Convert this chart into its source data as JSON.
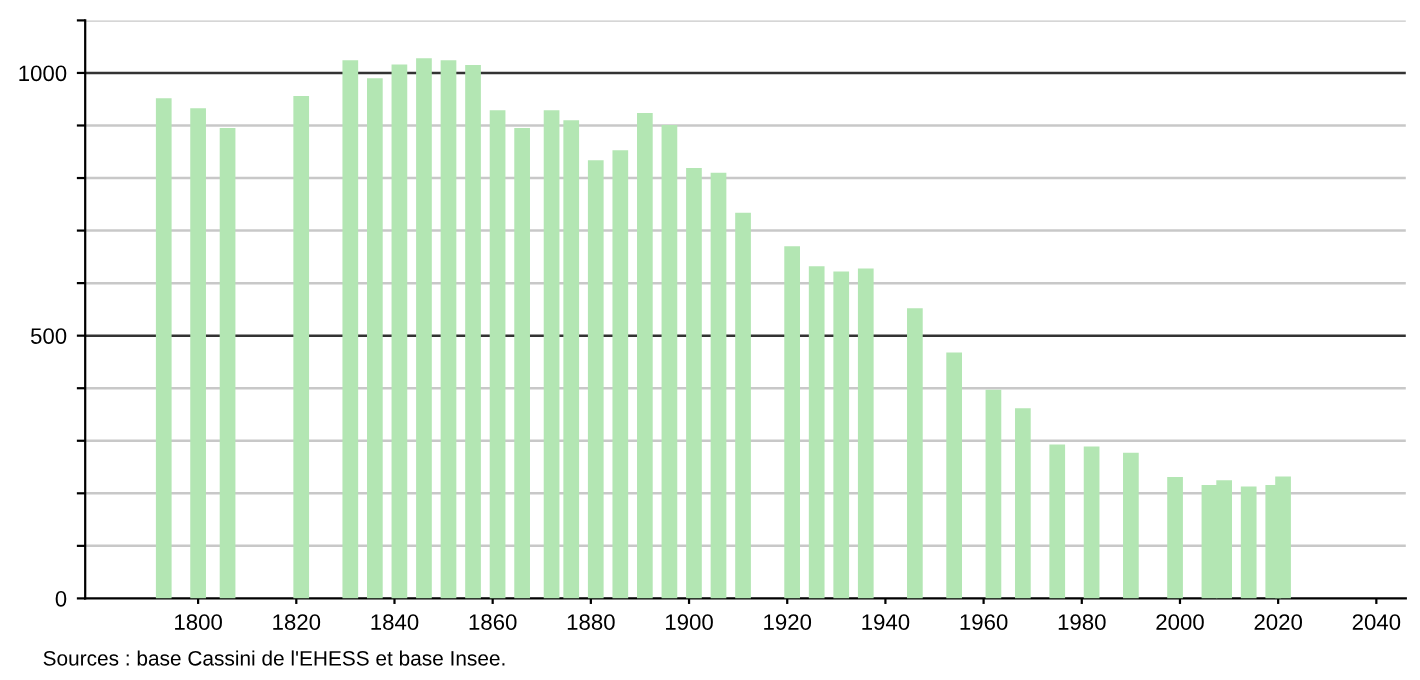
{
  "chart_data": {
    "type": "bar",
    "x": [
      1793,
      1800,
      1806,
      1821,
      1831,
      1836,
      1841,
      1846,
      1851,
      1856,
      1861,
      1866,
      1872,
      1876,
      1881,
      1886,
      1891,
      1896,
      1901,
      1906,
      1911,
      1921,
      1926,
      1931,
      1936,
      1946,
      1954,
      1962,
      1968,
      1975,
      1982,
      1990,
      1999,
      2006,
      2009,
      2014,
      2019,
      2021
    ],
    "values": [
      952,
      933,
      895,
      956,
      1024,
      990,
      1016,
      1028,
      1024,
      1015,
      929,
      895,
      929,
      910,
      834,
      853,
      924,
      901,
      819,
      810,
      734,
      670,
      632,
      622,
      628,
      552,
      468,
      397,
      362,
      293,
      289,
      277,
      231,
      216,
      225,
      213,
      216,
      232
    ],
    "color": "#b3e6b3",
    "xlim": [
      1777,
      2046
    ],
    "xticks": [
      1800,
      1820,
      1840,
      1860,
      1880,
      1900,
      1920,
      1940,
      1960,
      1980,
      2000,
      2020,
      2040
    ],
    "ylim": [
      0,
      1100
    ],
    "yticks": [
      0,
      {
        "value": 100,
        "label": null
      },
      {
        "value": 200,
        "label": null
      },
      {
        "value": 300,
        "label": null
      },
      {
        "value": 400,
        "label": null
      },
      500,
      {
        "value": 600,
        "label": null
      },
      {
        "value": 700,
        "label": null
      },
      {
        "value": 800,
        "label": null
      },
      {
        "value": 900,
        "label": null
      },
      1000,
      {
        "value": 1100,
        "label": null
      }
    ],
    "grid": "y",
    "annotations": [
      "Sources : base Cassini de l'EHESS et base Insee."
    ]
  }
}
